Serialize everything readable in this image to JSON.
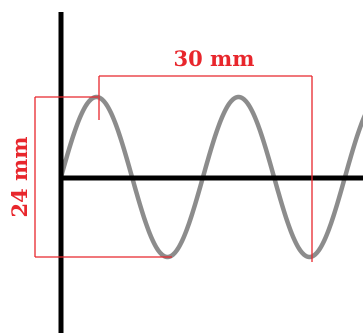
{
  "diagram": {
    "wavelength_label": "30 mm",
    "amplitude_label": "24 mm",
    "colors": {
      "axes": "#000000",
      "wave": "#8c8c8c",
      "dimension": "#e8262c"
    }
  }
}
